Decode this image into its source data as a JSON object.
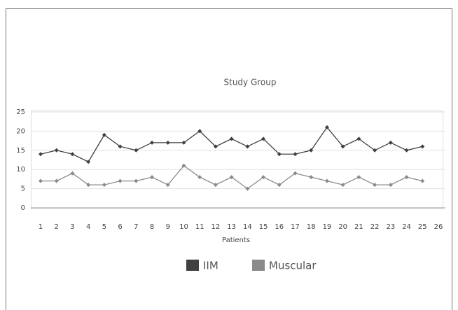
{
  "chart_data": {
    "type": "line",
    "title": "Study Group",
    "x_label": "Patients",
    "categories": [
      "1",
      "2",
      "3",
      "4",
      "5",
      "6",
      "7",
      "8",
      "9",
      "10",
      "11",
      "12",
      "13",
      "14",
      "15",
      "16",
      "17",
      "18",
      "19",
      "20",
      "21",
      "22",
      "23",
      "24",
      "25",
      "26"
    ],
    "series": [
      {
        "name": "IIM",
        "color": "#404040",
        "values": [
          14,
          15,
          14,
          12,
          19,
          16,
          15,
          17,
          17,
          17,
          20,
          16,
          18,
          16,
          18,
          14,
          14,
          15,
          21,
          16,
          18,
          15,
          17,
          15,
          16,
          null
        ]
      },
      {
        "name": "Muscular",
        "color": "#8a8a8a",
        "values": [
          7,
          7,
          9,
          6,
          6,
          7,
          7,
          8,
          6,
          11,
          8,
          6,
          8,
          5,
          8,
          6,
          9,
          8,
          7,
          6,
          8,
          6,
          6,
          8,
          7,
          null
        ]
      }
    ],
    "ylim": [
      0,
      25
    ],
    "yticks": [
      0,
      5,
      10,
      15,
      20,
      25
    ],
    "grid": true
  }
}
